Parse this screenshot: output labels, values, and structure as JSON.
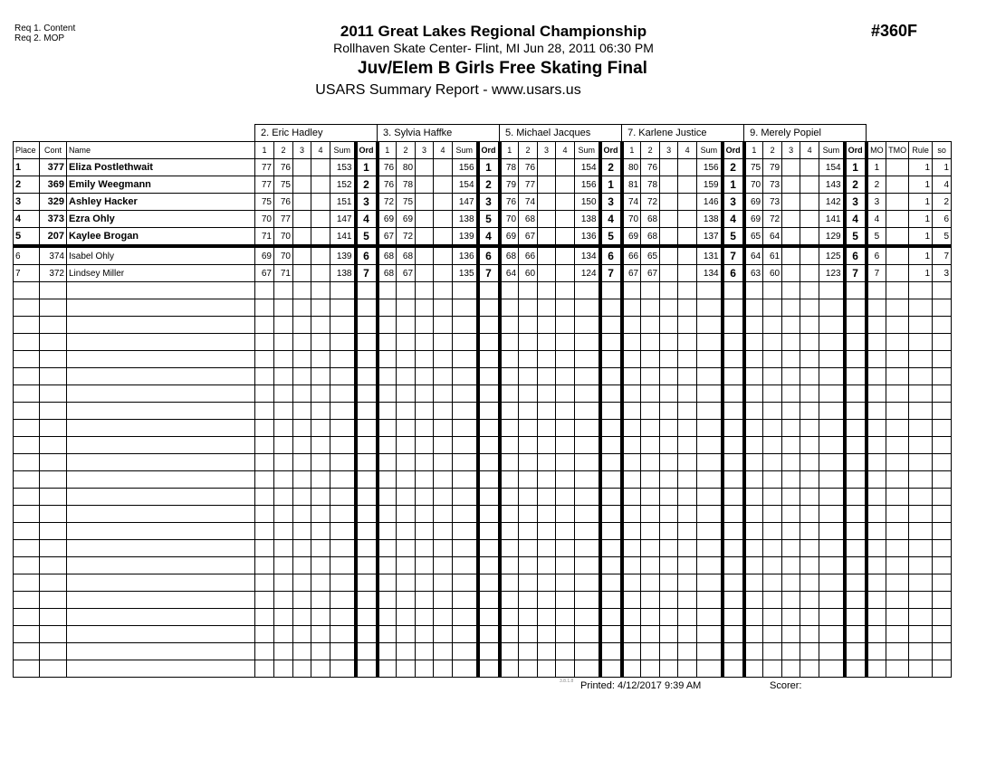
{
  "requirements": [
    "Req  1.  Content",
    "Req  2.  MOP"
  ],
  "event_number": "#360F",
  "title": "2011 Great Lakes Regional Championship",
  "venue_line": "Rollhaven Skate Center- Flint, MI  Jun 28, 2011  06:30 PM",
  "event_name": "Juv/Elem B Girls Free Skating Final",
  "report": "USARS Summary Report - www.usars.us",
  "judges": [
    "2.  Eric Hadley",
    "3.  Sylvia  Haffke",
    "5.  Michael  Jacques",
    "7.  Karlene  Justice",
    "9.  Merely Popiel"
  ],
  "columns": {
    "place": "Place",
    "cont": "Cont",
    "name": "Name",
    "judge_cols": [
      "1",
      "2",
      "3",
      "4",
      "Sum",
      "Ord"
    ],
    "mo": "MO",
    "tmo": "TMO",
    "rule": "Rule",
    "so": "so"
  },
  "rows": [
    {
      "place": "1",
      "cont": "377",
      "name": "Eliza Postlethwait",
      "bold": true,
      "scores": [
        [
          "77",
          "76",
          "153",
          "1"
        ],
        [
          "76",
          "80",
          "156",
          "1"
        ],
        [
          "78",
          "76",
          "154",
          "2"
        ],
        [
          "80",
          "76",
          "156",
          "2"
        ],
        [
          "75",
          "79",
          "154",
          "1"
        ]
      ],
      "mo": "1",
      "tmo": "",
      "rule": "1",
      "so": "1"
    },
    {
      "place": "2",
      "cont": "369",
      "name": "Emily Weegmann",
      "bold": true,
      "scores": [
        [
          "77",
          "75",
          "152",
          "2"
        ],
        [
          "76",
          "78",
          "154",
          "2"
        ],
        [
          "79",
          "77",
          "156",
          "1"
        ],
        [
          "81",
          "78",
          "159",
          "1"
        ],
        [
          "70",
          "73",
          "143",
          "2"
        ]
      ],
      "mo": "2",
      "tmo": "",
      "rule": "1",
      "so": "4"
    },
    {
      "place": "3",
      "cont": "329",
      "name": "Ashley Hacker",
      "bold": true,
      "scores": [
        [
          "75",
          "76",
          "151",
          "3"
        ],
        [
          "72",
          "75",
          "147",
          "3"
        ],
        [
          "76",
          "74",
          "150",
          "3"
        ],
        [
          "74",
          "72",
          "146",
          "3"
        ],
        [
          "69",
          "73",
          "142",
          "3"
        ]
      ],
      "mo": "3",
      "tmo": "",
      "rule": "1",
      "so": "2"
    },
    {
      "place": "4",
      "cont": "373",
      "name": "Ezra Ohly",
      "bold": true,
      "scores": [
        [
          "70",
          "77",
          "147",
          "4"
        ],
        [
          "69",
          "69",
          "138",
          "5"
        ],
        [
          "70",
          "68",
          "138",
          "4"
        ],
        [
          "70",
          "68",
          "138",
          "4"
        ],
        [
          "69",
          "72",
          "141",
          "4"
        ]
      ],
      "mo": "4",
      "tmo": "",
      "rule": "1",
      "so": "6"
    },
    {
      "place": "5",
      "cont": "207",
      "name": "Kaylee Brogan",
      "bold": true,
      "scores": [
        [
          "71",
          "70",
          "141",
          "5"
        ],
        [
          "67",
          "72",
          "139",
          "4"
        ],
        [
          "69",
          "67",
          "136",
          "5"
        ],
        [
          "69",
          "68",
          "137",
          "5"
        ],
        [
          "65",
          "64",
          "129",
          "5"
        ]
      ],
      "mo": "5",
      "tmo": "",
      "rule": "1",
      "so": "5"
    },
    {
      "place": "6",
      "cont": "374",
      "name": "Isabel Ohly",
      "bold": false,
      "scores": [
        [
          "69",
          "70",
          "139",
          "6"
        ],
        [
          "68",
          "68",
          "136",
          "6"
        ],
        [
          "68",
          "66",
          "134",
          "6"
        ],
        [
          "66",
          "65",
          "131",
          "7"
        ],
        [
          "64",
          "61",
          "125",
          "6"
        ]
      ],
      "mo": "6",
      "tmo": "",
      "rule": "1",
      "so": "7"
    },
    {
      "place": "7",
      "cont": "372",
      "name": "Lindsey Miller",
      "bold": false,
      "scores": [
        [
          "67",
          "71",
          "138",
          "7"
        ],
        [
          "68",
          "67",
          "135",
          "7"
        ],
        [
          "64",
          "60",
          "124",
          "7"
        ],
        [
          "67",
          "67",
          "134",
          "6"
        ],
        [
          "63",
          "60",
          "123",
          "7"
        ]
      ],
      "mo": "7",
      "tmo": "",
      "rule": "1",
      "so": "3"
    }
  ],
  "footer": {
    "version": "3.8.1.8",
    "printed": "Printed:  4/12/2017  9:39 AM",
    "scorer": "Scorer:"
  }
}
